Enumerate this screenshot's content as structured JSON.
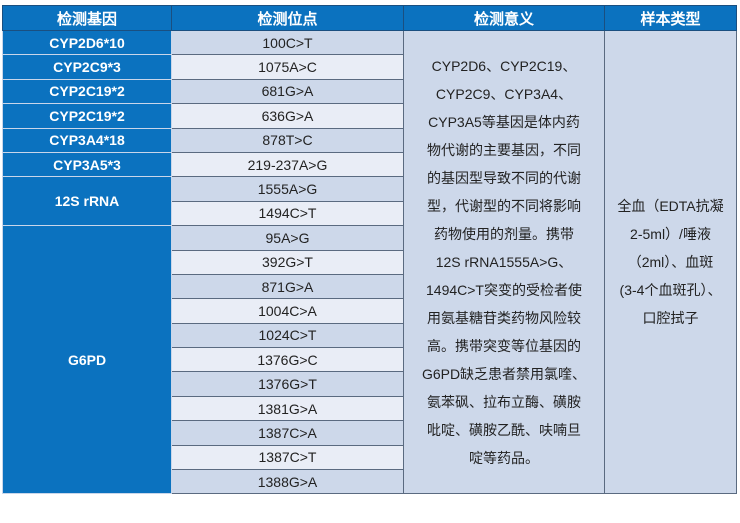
{
  "headers": [
    "检测基因",
    "检测位点",
    "检测意义",
    "样本类型"
  ],
  "genes": [
    {
      "name": "CYP2D6*10",
      "sites": [
        "100C>T"
      ]
    },
    {
      "name": "CYP2C9*3",
      "sites": [
        "1075A>C"
      ]
    },
    {
      "name": "CYP2C19*2",
      "sites": [
        "681G>A"
      ]
    },
    {
      "name": "CYP2C19*2",
      "sites": [
        "636G>A"
      ]
    },
    {
      "name": "CYP3A4*18",
      "sites": [
        "878T>C"
      ]
    },
    {
      "name": "CYP3A5*3",
      "sites": [
        "219-237A>G"
      ]
    },
    {
      "name": "12S rRNA",
      "sites": [
        "1555A>G",
        "1494C>T"
      ]
    },
    {
      "name": "G6PD",
      "sites": [
        "95A>G",
        "392G>T",
        "871G>A",
        "1004C>A",
        "1024C>T",
        "1376G>C",
        "1376G>T",
        "1381G>A",
        "1387C>A",
        "1387C>T",
        "1388G>A"
      ]
    }
  ],
  "significance_lines": [
    "CYP2D6、CYP2C19、",
    "CYP2C9、CYP3A4、",
    "CYP3A5等基因是体内药",
    "物代谢的主要基因，不同",
    "的基因型导致不同的代谢",
    "型，代谢型的不同将影响",
    "药物使用的剂量。携带",
    "12S rRNA1555A>G、",
    "1494C>T突变的受检者使",
    "用氨基糖苷类药物风险较",
    "高。携带突变等位基因的",
    "G6PD缺乏患者禁用氯喹、",
    "氨苯砜、拉布立酶、磺胺",
    "吡啶、磺胺乙酰、呋喃旦",
    "啶等药品。"
  ],
  "sample_lines": [
    "全血（EDTA抗凝",
    "2-5ml）/唾液",
    "（2ml）、血斑",
    "(3-4个血斑孔）、",
    "口腔拭子"
  ],
  "colors": {
    "header": "#0b72bf",
    "row_odd": "#cdd8ea",
    "row_even": "#e9edf6"
  }
}
